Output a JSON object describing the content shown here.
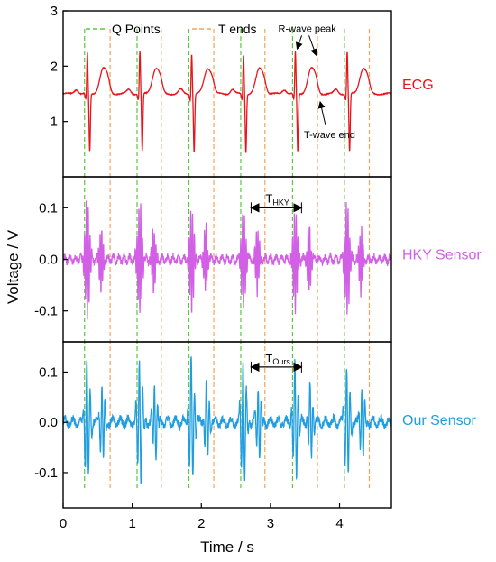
{
  "chart_data": {
    "type": "line",
    "xlabel": "Time / s",
    "ylabel": "Voltage / V",
    "xlim": [
      0,
      4.75
    ],
    "xticks": [
      "0",
      "1",
      "2",
      "3",
      "4"
    ],
    "xtick_values": [
      0,
      1,
      2,
      3,
      4
    ],
    "legend": {
      "position": "top",
      "q_label": "Q Points",
      "t_label": "T ends"
    },
    "q_points": [
      0.31,
      1.07,
      1.82,
      2.57,
      3.32,
      4.07
    ],
    "t_ends": [
      0.68,
      1.42,
      2.18,
      2.92,
      3.68,
      4.43
    ],
    "heartbeats_r_peaks": [
      0.35,
      1.11,
      1.86,
      2.61,
      3.36,
      4.11
    ],
    "panels": [
      {
        "name": "ECG",
        "label": "ECG",
        "color": "#e8141c",
        "ylim": [
          0,
          3
        ],
        "yticks": [
          "1",
          "2",
          "3"
        ],
        "ytick_values": [
          1,
          2,
          3
        ],
        "baseline": 1.5,
        "r_peak": 2.3,
        "s_min": 0.5,
        "t_peak": 2.1,
        "annotations": [
          {
            "text": "R-wave peak",
            "x": 3.4,
            "y": 2.62,
            "target_x": 3.36,
            "target_y": 2.28
          },
          {
            "text": "T-wave end",
            "x": 3.85,
            "y": 0.93,
            "target_x": 3.68,
            "target_y": 1.42
          }
        ]
      },
      {
        "name": "HKY Sensor",
        "label": "HKY Sensor",
        "color": "#d25fe6",
        "ylim": [
          -0.16,
          0.16
        ],
        "yticks": [
          "0.1",
          "0.0",
          "-0.1"
        ],
        "ytick_values": [
          0.1,
          0.0,
          -0.1
        ],
        "peak_amplitude": 0.12,
        "interval_label_main": "T",
        "interval_label_sub": "HKY",
        "interval_start": 2.72,
        "interval_end": 3.45,
        "interval_y": 0.1
      },
      {
        "name": "Our Sensor",
        "label": "Our Sensor",
        "color": "#1f9de0",
        "ylim": [
          -0.17,
          0.16
        ],
        "yticks": [
          "0.1",
          "0.0",
          "-0.1"
        ],
        "ytick_values": [
          0.1,
          0.0,
          -0.1
        ],
        "peak_amplitude": 0.13,
        "interval_label_main": "T",
        "interval_label_sub": "Ours",
        "interval_start": 2.72,
        "interval_end": 3.45,
        "interval_y": 0.11
      }
    ],
    "colors": {
      "q_line": "#58c93c",
      "t_line": "#f5a25a"
    }
  }
}
